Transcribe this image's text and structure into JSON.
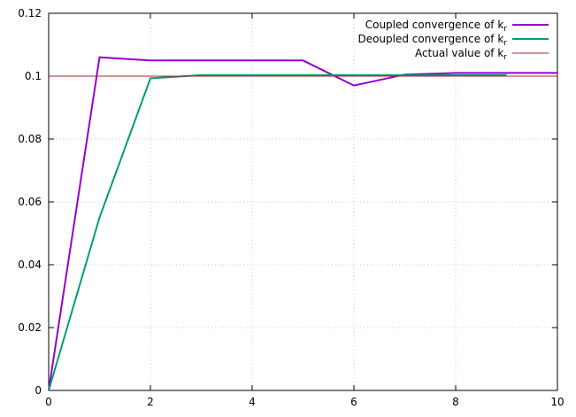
{
  "chart_data": {
    "type": "line",
    "title": "",
    "xlabel": "",
    "ylabel": "",
    "xlim": [
      0,
      10
    ],
    "ylim": [
      0,
      0.12
    ],
    "grid": true,
    "legend_position": "top-right",
    "x_ticks": [
      {
        "value": 0,
        "label": "0"
      },
      {
        "value": 2,
        "label": "2"
      },
      {
        "value": 4,
        "label": "4"
      },
      {
        "value": 6,
        "label": "6"
      },
      {
        "value": 8,
        "label": "8"
      },
      {
        "value": 10,
        "label": "10"
      }
    ],
    "y_ticks": [
      {
        "value": 0,
        "label": "0"
      },
      {
        "value": 0.02,
        "label": "0.02"
      },
      {
        "value": 0.04,
        "label": "0.04"
      },
      {
        "value": 0.06,
        "label": "0.06"
      },
      {
        "value": 0.08,
        "label": "0.08"
      },
      {
        "value": 0.1,
        "label": "0.1"
      },
      {
        "value": 0.12,
        "label": "0.12"
      }
    ],
    "series": [
      {
        "name": "Coupled convergence of k",
        "name_subscript": "r",
        "color": "#9400d3",
        "style": "thick",
        "x": [
          0,
          1,
          2,
          3,
          4,
          5,
          6,
          7,
          8,
          9,
          10
        ],
        "y": [
          0,
          0.106,
          0.105,
          0.105,
          0.105,
          0.105,
          0.097,
          0.1005,
          0.101,
          0.101,
          0.101
        ]
      },
      {
        "name": "Deoupled convergence of k",
        "name_subscript": "r",
        "color": "#009e73",
        "style": "thick",
        "x": [
          0,
          1,
          2,
          3,
          4,
          5,
          6,
          7,
          8,
          9
        ],
        "y": [
          0,
          0.055,
          0.0993,
          0.1003,
          0.1003,
          0.1003,
          0.1003,
          0.1003,
          0.1003,
          0.1003
        ]
      },
      {
        "name": "Actual value of k",
        "name_subscript": "r",
        "color": "#a52a2a",
        "style": "thin",
        "x": [
          0,
          10
        ],
        "y": [
          0.1,
          0.1
        ]
      }
    ]
  }
}
